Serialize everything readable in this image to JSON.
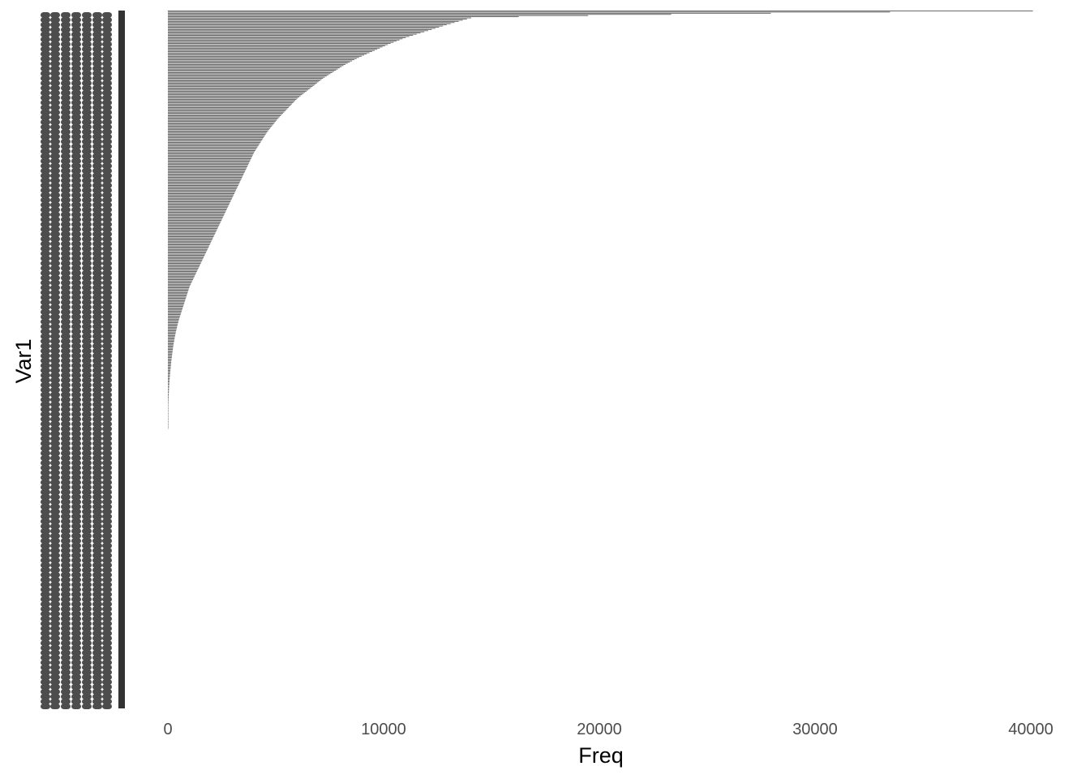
{
  "chart_data": {
    "type": "bar",
    "orientation": "horizontal",
    "title": "",
    "xlabel": "Freq",
    "ylabel": "Var1",
    "xlim": [
      0,
      40000
    ],
    "x_ticks": [
      0,
      10000,
      20000,
      30000,
      40000
    ],
    "x_tick_labels": [
      "0",
      "10000",
      "20000",
      "30000",
      "40000"
    ],
    "y_tick_labels": "illegible (overplotted category labels)",
    "grid": false,
    "legend": "none",
    "bar_color": "#595959",
    "category_count_estimate": 600,
    "bars_with_nonzero_freq_estimate": 360,
    "sorted": "descending from top",
    "values": [
      40100,
      14100,
      13000,
      12000,
      11000,
      10200,
      9500,
      8800,
      8200,
      7700,
      7200,
      6800,
      6400,
      6000,
      5700,
      5400,
      5100,
      4850,
      4600,
      4400,
      4200,
      4000,
      3850,
      3700,
      3550,
      3400,
      3250,
      3100,
      2950,
      2800,
      2650,
      2500,
      2350,
      2200,
      2050,
      1900,
      1750,
      1600,
      1450,
      1300,
      1150,
      1000,
      900,
      800,
      700,
      600,
      500,
      420,
      350,
      290,
      240,
      200,
      160,
      130,
      100,
      75,
      55,
      40,
      28,
      18,
      10,
      5,
      2
    ]
  }
}
